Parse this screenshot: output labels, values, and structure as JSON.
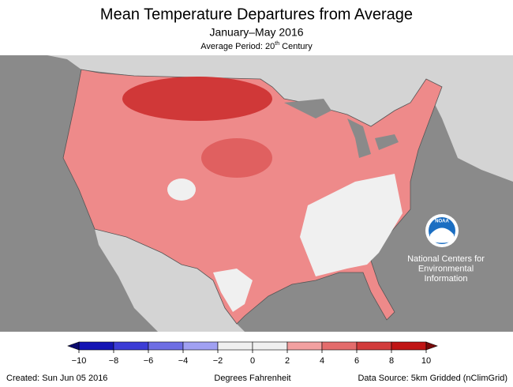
{
  "header": {
    "title": "Mean Temperature Departures from Average",
    "subtitle": "January–May 2016",
    "period": "Average Period: 20",
    "period_sup": "th",
    "period_end": " Century"
  },
  "colorbar": {
    "bins": [
      -10,
      -8,
      -6,
      -4,
      -2,
      0,
      2,
      4,
      6,
      8,
      10
    ],
    "colors": [
      "#1414b4",
      "#3c3cd6",
      "#6e6ee4",
      "#a0a0f2",
      "#f0f0f0",
      "#f0f0f0",
      "#f2a0a0",
      "#e46c6c",
      "#d23c3c",
      "#c01414"
    ],
    "under_color": "#0a0a6e",
    "over_color": "#780a0a",
    "ticks": [
      {
        "value": -10,
        "label": "−10"
      },
      {
        "value": -8,
        "label": "−8"
      },
      {
        "value": -6,
        "label": "−6"
      },
      {
        "value": -4,
        "label": "−4"
      },
      {
        "value": -2,
        "label": "−2"
      },
      0,
      2,
      4,
      6,
      8,
      10
    ],
    "label": "Degrees Fahrenheit"
  },
  "logo": {
    "name": "NOAA",
    "lines": [
      "National Centers for",
      "Environmental",
      "Information"
    ]
  },
  "footer": {
    "created": "Created: Sun Jun 05 2016",
    "source": "Data Source: 5km Gridded (nClimGrid)"
  }
}
